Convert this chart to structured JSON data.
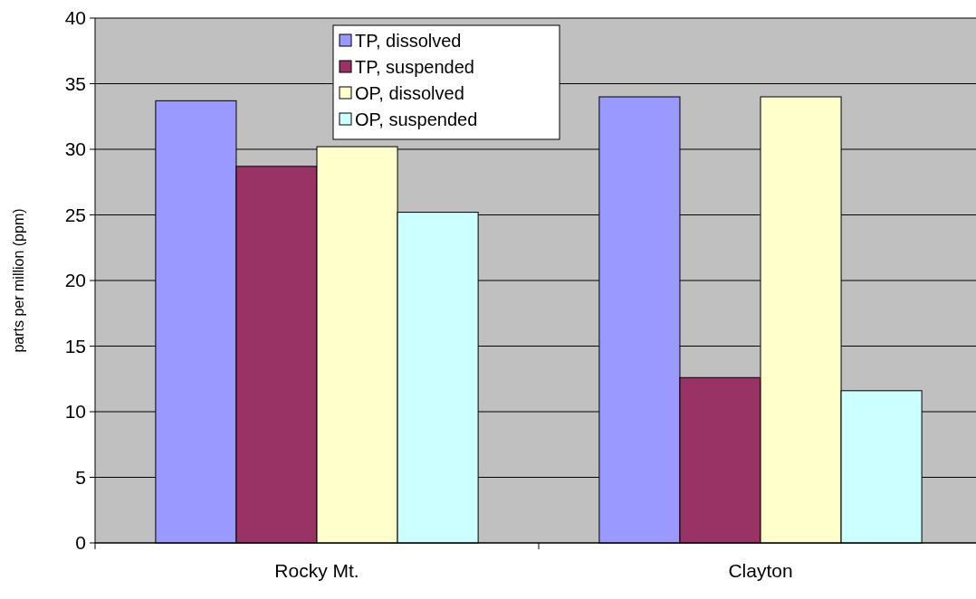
{
  "chart_data": {
    "type": "bar",
    "ylabel": "parts per million (ppm)",
    "categories": [
      "Rocky Mt.",
      "Clayton"
    ],
    "series": [
      {
        "name": "TP, dissolved",
        "color": "#9999ff",
        "values": [
          33.7,
          34.0
        ]
      },
      {
        "name": "TP, suspended",
        "color": "#993366",
        "values": [
          28.7,
          12.6
        ]
      },
      {
        "name": "OP, dissolved",
        "color": "#ffffcc",
        "values": [
          30.2,
          34.0
        ]
      },
      {
        "name": "OP, suspended",
        "color": "#ccffff",
        "values": [
          25.2,
          11.6
        ]
      }
    ],
    "ylim": [
      0,
      40
    ],
    "yticks": [
      0,
      5,
      10,
      15,
      20,
      25,
      30,
      35,
      40
    ],
    "grid": "y",
    "legend": "top"
  }
}
